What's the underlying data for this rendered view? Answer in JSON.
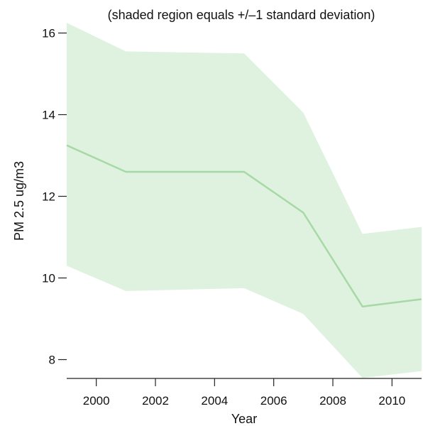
{
  "chart_data": {
    "type": "area",
    "subtitle": "(shaded region equals +/‒1 standard deviation)",
    "xlabel": "Year",
    "ylabel": "PM 2.5 ug/m3",
    "xlim": [
      1999,
      2011
    ],
    "ylim": [
      7.5,
      16.3
    ],
    "x_ticks": [
      2000,
      2002,
      2004,
      2006,
      2008,
      2010
    ],
    "y_ticks": [
      8,
      10,
      12,
      14,
      16
    ],
    "grid": false,
    "legend": "none",
    "x": [
      1999,
      2001,
      2005,
      2007,
      2009,
      2011
    ],
    "series": [
      {
        "mean": [
          13.25,
          12.6,
          12.6,
          11.6,
          9.3,
          9.48
        ],
        "upper": [
          16.25,
          15.55,
          15.5,
          14.05,
          11.08,
          11.25
        ],
        "lower": [
          10.3,
          9.68,
          9.75,
          9.12,
          7.55,
          7.72
        ]
      }
    ],
    "colors": {
      "band": "#dff2df",
      "line": "#a6d9a6",
      "axis": "#222222"
    }
  }
}
